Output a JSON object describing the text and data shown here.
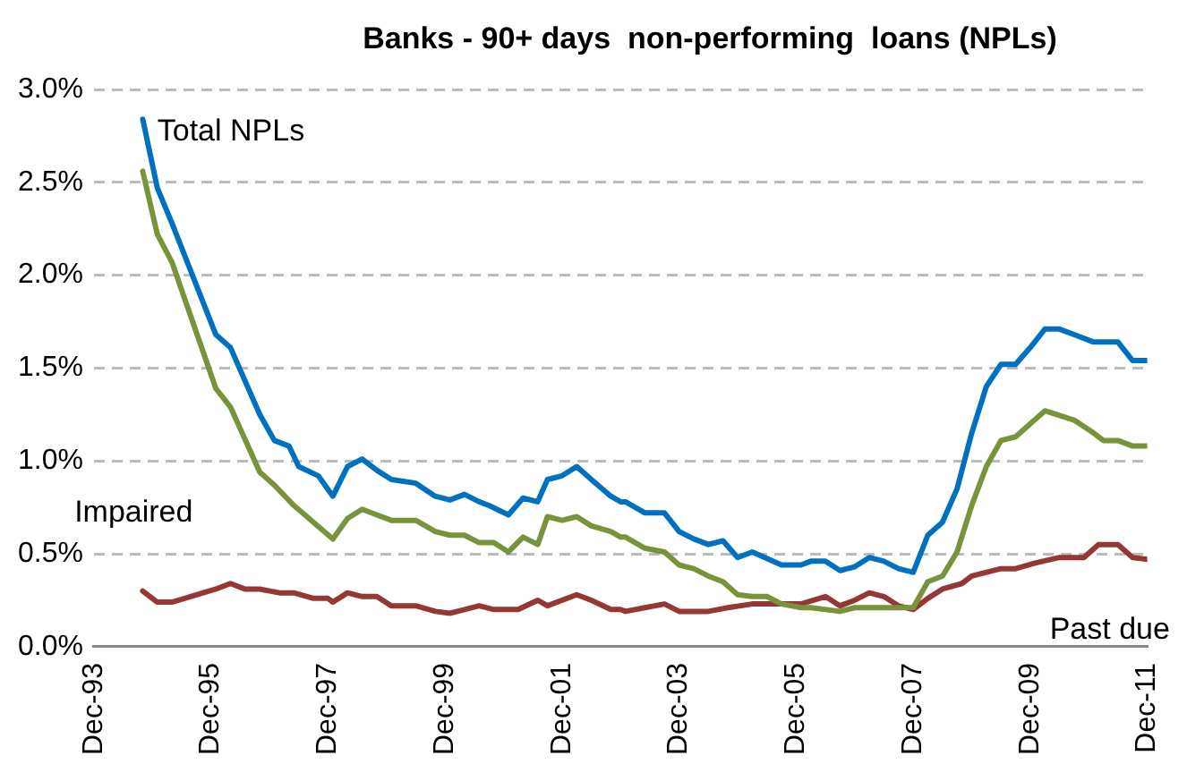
{
  "chart_data": {
    "type": "line",
    "title": "Banks - 90+ days  non-performing  loans (NPLs)",
    "xlim": [
      "1993-12",
      "2011-12"
    ],
    "xticks": [
      {
        "value": "1993-12",
        "label": "Dec-93"
      },
      {
        "value": "1995-12",
        "label": "Dec-95"
      },
      {
        "value": "1997-12",
        "label": "Dec-97"
      },
      {
        "value": "1999-12",
        "label": "Dec-99"
      },
      {
        "value": "2001-12",
        "label": "Dec-01"
      },
      {
        "value": "2003-12",
        "label": "Dec-03"
      },
      {
        "value": "2005-12",
        "label": "Dec-05"
      },
      {
        "value": "2007-12",
        "label": "Dec-07"
      },
      {
        "value": "2009-12",
        "label": "Dec-09"
      },
      {
        "value": "2011-12",
        "label": "Dec-11"
      }
    ],
    "ylim": [
      0,
      3
    ],
    "yticks": [
      {
        "value": 0,
        "label": "0.0%"
      },
      {
        "value": 0.5,
        "label": "0.5%"
      },
      {
        "value": 1,
        "label": "1.0%"
      },
      {
        "value": 1.5,
        "label": "1.5%"
      },
      {
        "value": 2,
        "label": "2.0%"
      },
      {
        "value": 2.5,
        "label": "2.5%"
      },
      {
        "value": 3,
        "label": "3.0%"
      }
    ],
    "grid": "y",
    "legend": false,
    "marker": "none",
    "line_style": "solid",
    "series": [
      {
        "name": "Total NPLs",
        "color": "#0070c0",
        "x": [
          "1994-10",
          "1995-01",
          "1995-04",
          "1996-01",
          "1996-04",
          "1996-10",
          "1997-01",
          "1997-04",
          "1997-06",
          "1997-10",
          "1998-01",
          "1998-04",
          "1998-07",
          "1998-10",
          "1999-01",
          "1999-06",
          "1999-10",
          "2000-01",
          "2000-04",
          "2000-07",
          "2000-09",
          "2001-01",
          "2001-04",
          "2001-07",
          "2001-09",
          "2001-12",
          "2002-03",
          "2002-06",
          "2002-10",
          "2002-12",
          "2003-01",
          "2003-05",
          "2003-09",
          "2003-12",
          "2004-03",
          "2004-06",
          "2004-09",
          "2004-12",
          "2005-03",
          "2005-09",
          "2006-01",
          "2006-03",
          "2006-06",
          "2006-09",
          "2006-12",
          "2007-03",
          "2007-06",
          "2007-09",
          "2007-12",
          "2008-03",
          "2008-06",
          "2008-09",
          "2008-12",
          "2009-03",
          "2009-06",
          "2009-09",
          "2009-12",
          "2010-03",
          "2010-06",
          "2010-09",
          "2011-01",
          "2011-06",
          "2011-09",
          "2011-12"
        ],
        "values": [
          2.84,
          2.47,
          2.28,
          1.68,
          1.61,
          1.25,
          1.11,
          1.08,
          0.97,
          0.92,
          0.81,
          0.97,
          1.01,
          0.95,
          0.9,
          0.88,
          0.81,
          0.79,
          0.82,
          0.78,
          0.76,
          0.71,
          0.8,
          0.78,
          0.9,
          0.92,
          0.97,
          0.9,
          0.81,
          0.78,
          0.78,
          0.72,
          0.72,
          0.62,
          0.58,
          0.55,
          0.57,
          0.48,
          0.51,
          0.44,
          0.44,
          0.46,
          0.46,
          0.41,
          0.43,
          0.48,
          0.46,
          0.42,
          0.4,
          0.6,
          0.67,
          0.85,
          1.15,
          1.4,
          1.52,
          1.52,
          1.61,
          1.71,
          1.71,
          1.68,
          1.64,
          1.64,
          1.54,
          1.54
        ]
      },
      {
        "name": "Impaired",
        "color": "#77933c",
        "x": [
          "1994-10",
          "1995-01",
          "1995-04",
          "1996-01",
          "1996-04",
          "1996-10",
          "1997-01",
          "1997-05",
          "1997-09",
          "1998-01",
          "1998-04",
          "1998-07",
          "1998-10",
          "1999-01",
          "1999-06",
          "1999-10",
          "2000-01",
          "2000-04",
          "2000-07",
          "2000-10",
          "2001-01",
          "2001-04",
          "2001-07",
          "2001-09",
          "2001-12",
          "2002-03",
          "2002-06",
          "2002-10",
          "2002-12",
          "2003-01",
          "2003-05",
          "2003-09",
          "2003-12",
          "2004-03",
          "2004-06",
          "2004-09",
          "2004-12",
          "2005-03",
          "2005-06",
          "2005-09",
          "2006-01",
          "2006-03",
          "2006-09",
          "2006-12",
          "2007-06",
          "2007-12",
          "2008-03",
          "2008-06",
          "2008-09",
          "2008-12",
          "2009-03",
          "2009-06",
          "2009-09",
          "2009-12",
          "2010-03",
          "2010-09",
          "2011-01",
          "2011-03",
          "2011-06",
          "2011-09",
          "2011-12"
        ],
        "values": [
          2.56,
          2.22,
          2.07,
          1.39,
          1.29,
          0.94,
          0.87,
          0.76,
          0.67,
          0.58,
          0.69,
          0.74,
          0.71,
          0.68,
          0.68,
          0.62,
          0.6,
          0.6,
          0.56,
          0.56,
          0.51,
          0.59,
          0.55,
          0.7,
          0.68,
          0.7,
          0.65,
          0.62,
          0.59,
          0.59,
          0.53,
          0.51,
          0.44,
          0.42,
          0.38,
          0.35,
          0.28,
          0.27,
          0.27,
          0.23,
          0.21,
          0.21,
          0.19,
          0.21,
          0.21,
          0.21,
          0.35,
          0.38,
          0.51,
          0.76,
          0.97,
          1.11,
          1.13,
          1.2,
          1.27,
          1.22,
          1.15,
          1.11,
          1.11,
          1.08,
          1.08
        ]
      },
      {
        "name": "Past due",
        "color": "#953735",
        "x": [
          "1994-10",
          "1995-01",
          "1995-04",
          "1996-01",
          "1996-04",
          "1996-07",
          "1996-10",
          "1997-02",
          "1997-05",
          "1997-09",
          "1997-12",
          "1998-01",
          "1998-04",
          "1998-07",
          "1998-10",
          "1999-01",
          "1999-06",
          "1999-10",
          "2000-01",
          "2000-04",
          "2000-07",
          "2000-10",
          "2001-03",
          "2001-07",
          "2001-09",
          "2002-03",
          "2002-06",
          "2002-10",
          "2002-12",
          "2003-01",
          "2003-05",
          "2003-09",
          "2003-12",
          "2004-06",
          "2004-10",
          "2005-03",
          "2006-01",
          "2006-06",
          "2006-09",
          "2006-12",
          "2007-03",
          "2007-06",
          "2007-09",
          "2007-12",
          "2008-03",
          "2008-06",
          "2008-10",
          "2008-12",
          "2009-06",
          "2009-09",
          "2010-01",
          "2010-06",
          "2010-11",
          "2011-02",
          "2011-06",
          "2011-09",
          "2011-12"
        ],
        "values": [
          0.3,
          0.24,
          0.24,
          0.31,
          0.34,
          0.31,
          0.31,
          0.29,
          0.29,
          0.26,
          0.26,
          0.24,
          0.29,
          0.27,
          0.27,
          0.22,
          0.22,
          0.19,
          0.18,
          0.2,
          0.22,
          0.2,
          0.2,
          0.25,
          0.22,
          0.28,
          0.25,
          0.2,
          0.2,
          0.19,
          0.21,
          0.23,
          0.19,
          0.19,
          0.21,
          0.23,
          0.23,
          0.27,
          0.22,
          0.25,
          0.29,
          0.27,
          0.22,
          0.2,
          0.26,
          0.31,
          0.34,
          0.38,
          0.42,
          0.42,
          0.45,
          0.48,
          0.48,
          0.55,
          0.55,
          0.48,
          0.47
        ]
      }
    ]
  }
}
